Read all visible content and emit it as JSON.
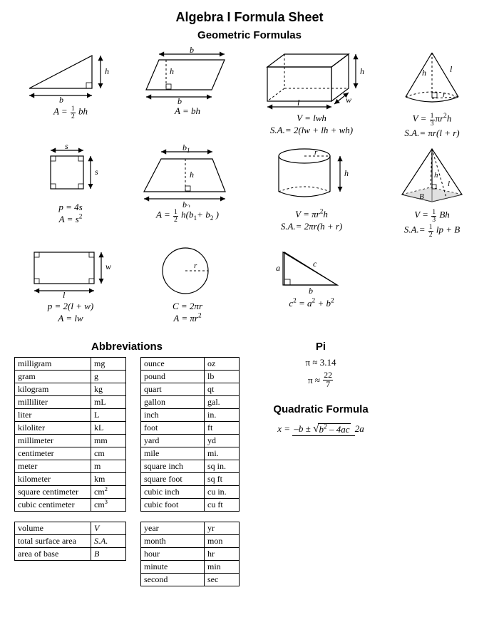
{
  "title": "Algebra I Formula Sheet",
  "geometric_heading": "Geometric Formulas",
  "abbrev_heading": "Abbreviations",
  "pi_heading": "Pi",
  "quad_heading": "Quadratic Formula",
  "pi": {
    "line1_lhs": "π",
    "line1_op": "≈",
    "line1_rhs": "3.14",
    "line2_lhs": "π",
    "line2_op": "≈",
    "line2_num": "22",
    "line2_den": "7"
  },
  "quad": {
    "lhs": "x =",
    "neg_b": "–b",
    "pm": "±",
    "b2": "b",
    "minus": "– 4",
    "ac": "ac",
    "denom": "2a"
  },
  "formulas": {
    "triangle_area": {
      "lhs": "A =",
      "frac_num": "1",
      "frac_den": "2",
      "rhs": " bh"
    },
    "parallelogram": {
      "text": "A = bh"
    },
    "prism_v": {
      "text": "V = lwh"
    },
    "prism_sa": {
      "lhs": "S.A.=",
      "rhs": " 2(lw + lh + wh)"
    },
    "cone_v": {
      "lhs": "V =",
      "frac_num": "1",
      "frac_den": "3",
      "pi": "π",
      "rhs": "r",
      "exp": "2",
      "end": "h"
    },
    "cone_sa": {
      "lhs": "S.A.=",
      "pi": "π",
      "rhs": "r(l + r)"
    },
    "square_p": {
      "text": "p = 4s"
    },
    "square_a": {
      "lhs": "A = s",
      "exp": "2"
    },
    "trapezoid": {
      "lhs": "A =",
      "frac_num": "1",
      "frac_den": "2",
      "mid": " h(",
      "b1": "b",
      "s1": "1",
      "plus": "+ ",
      "b2": "b",
      "s2": "2",
      "end": " )"
    },
    "cylinder_v": {
      "lhs": "V = π",
      "r": "r",
      "exp": "2",
      "end": "h"
    },
    "cylinder_sa": {
      "lhs": "S.A.= 2π",
      "r": "r(h + r)"
    },
    "pyramid_v": {
      "lhs": "V =",
      "frac_num": "1",
      "frac_den": "3",
      "rhs": " Bh"
    },
    "pyramid_sa": {
      "lhs": "S.A.=",
      "frac_num": "1",
      "frac_den": "2",
      "rhs": " lp + B"
    },
    "rect_p": {
      "text": "p = 2(l + w)"
    },
    "rect_a": {
      "text": "A = lw"
    },
    "circle_c": {
      "lhs": "C = 2π",
      "r": "r"
    },
    "circle_a": {
      "lhs": "A = π",
      "r": "r",
      "exp": "2"
    },
    "pyth": {
      "c": "c",
      "e1": "2",
      "eq": " = ",
      "a": "a",
      "e2": "2",
      "plus": " + ",
      "b": "b",
      "e3": "2"
    }
  },
  "labels": {
    "b": "b",
    "h": "h",
    "s": "s",
    "b1": "b₁",
    "b2": "b₂",
    "l": "l",
    "w": "w",
    "r": "r",
    "a": "a",
    "c": "c",
    "B": "B"
  },
  "abbr_left": [
    [
      "milligram",
      "mg"
    ],
    [
      "gram",
      "g"
    ],
    [
      "kilogram",
      "kg"
    ],
    [
      "milliliter",
      "mL"
    ],
    [
      "liter",
      "L"
    ],
    [
      "kiloliter",
      "kL"
    ],
    [
      "millimeter",
      "mm"
    ],
    [
      "centimeter",
      "cm"
    ],
    [
      "meter",
      "m"
    ],
    [
      "kilometer",
      "km"
    ],
    [
      "square centimeter",
      "cm²"
    ],
    [
      "cubic centimeter",
      "cm³"
    ]
  ],
  "abbr_left2": [
    [
      "volume",
      "V"
    ],
    [
      "total surface area",
      "S.A."
    ],
    [
      "area of base",
      "B"
    ]
  ],
  "abbr_right": [
    [
      "ounce",
      "oz"
    ],
    [
      "pound",
      "lb"
    ],
    [
      "quart",
      "qt"
    ],
    [
      "gallon",
      "gal."
    ],
    [
      "inch",
      "in."
    ],
    [
      "foot",
      "ft"
    ],
    [
      "yard",
      "yd"
    ],
    [
      "mile",
      "mi."
    ],
    [
      "square inch",
      "sq in."
    ],
    [
      "square foot",
      "sq ft"
    ],
    [
      "cubic inch",
      "cu in."
    ],
    [
      "cubic foot",
      "cu ft"
    ]
  ],
  "abbr_right2": [
    [
      "year",
      "yr"
    ],
    [
      "month",
      "mon"
    ],
    [
      "hour",
      "hr"
    ],
    [
      "minute",
      "min"
    ],
    [
      "second",
      "sec"
    ]
  ],
  "style": {
    "stroke": "#000000",
    "stroke_width": 1.2,
    "dash": "3,3",
    "bg": "#ffffff"
  }
}
